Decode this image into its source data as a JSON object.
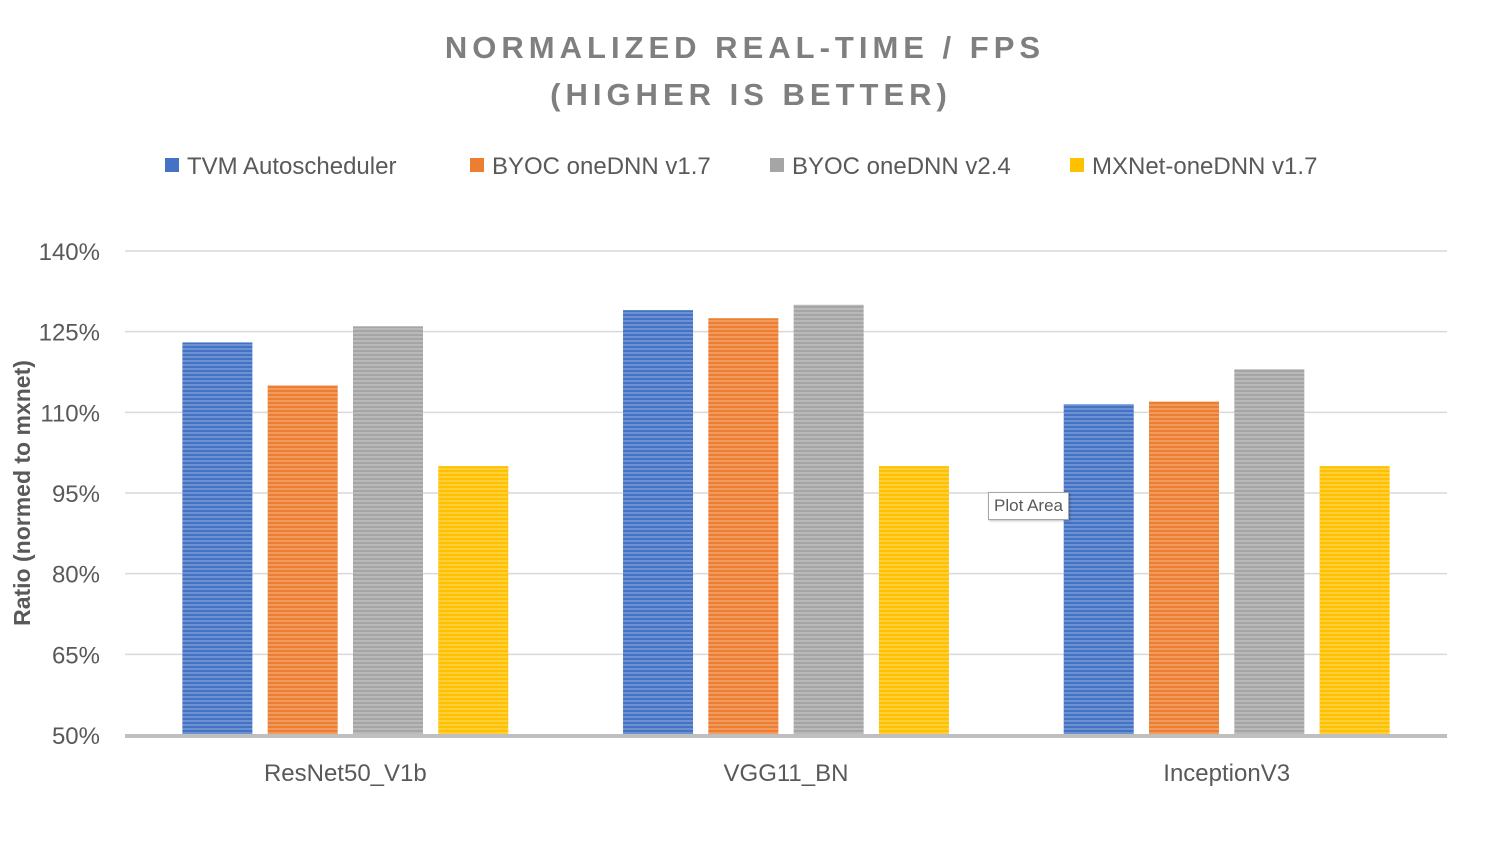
{
  "chart_data": {
    "type": "bar",
    "title_lines": [
      "NORMALIZED REAL-TIME / FPS",
      "(HIGHER IS BETTER)"
    ],
    "xlabel": "",
    "ylabel": "Ratio (normed to mxnet)",
    "categories": [
      "ResNet50_V1b",
      "VGG11_BN",
      "InceptionV3"
    ],
    "series": [
      {
        "name": "TVM Autoscheduler",
        "color": "#4472c4",
        "values": [
          123,
          129,
          111.5
        ]
      },
      {
        "name": "BYOC oneDNN v1.7",
        "color": "#ed7d31",
        "values": [
          115,
          127.5,
          112
        ]
      },
      {
        "name": "BYOC oneDNN v2.4",
        "color": "#a5a5a5",
        "values": [
          126,
          130,
          118
        ]
      },
      {
        "name": "MXNet-oneDNN v1.7",
        "color": "#ffc000",
        "values": [
          100,
          100,
          100
        ]
      }
    ],
    "ylim": [
      50,
      140
    ],
    "yticks": [
      50,
      65,
      80,
      95,
      110,
      125,
      140
    ],
    "ytick_labels": [
      "50%",
      "65%",
      "80%",
      "95%",
      "110%",
      "125%",
      "140%"
    ],
    "grid": true,
    "legend_position": "top"
  },
  "tooltip": {
    "label": "Plot Area"
  }
}
